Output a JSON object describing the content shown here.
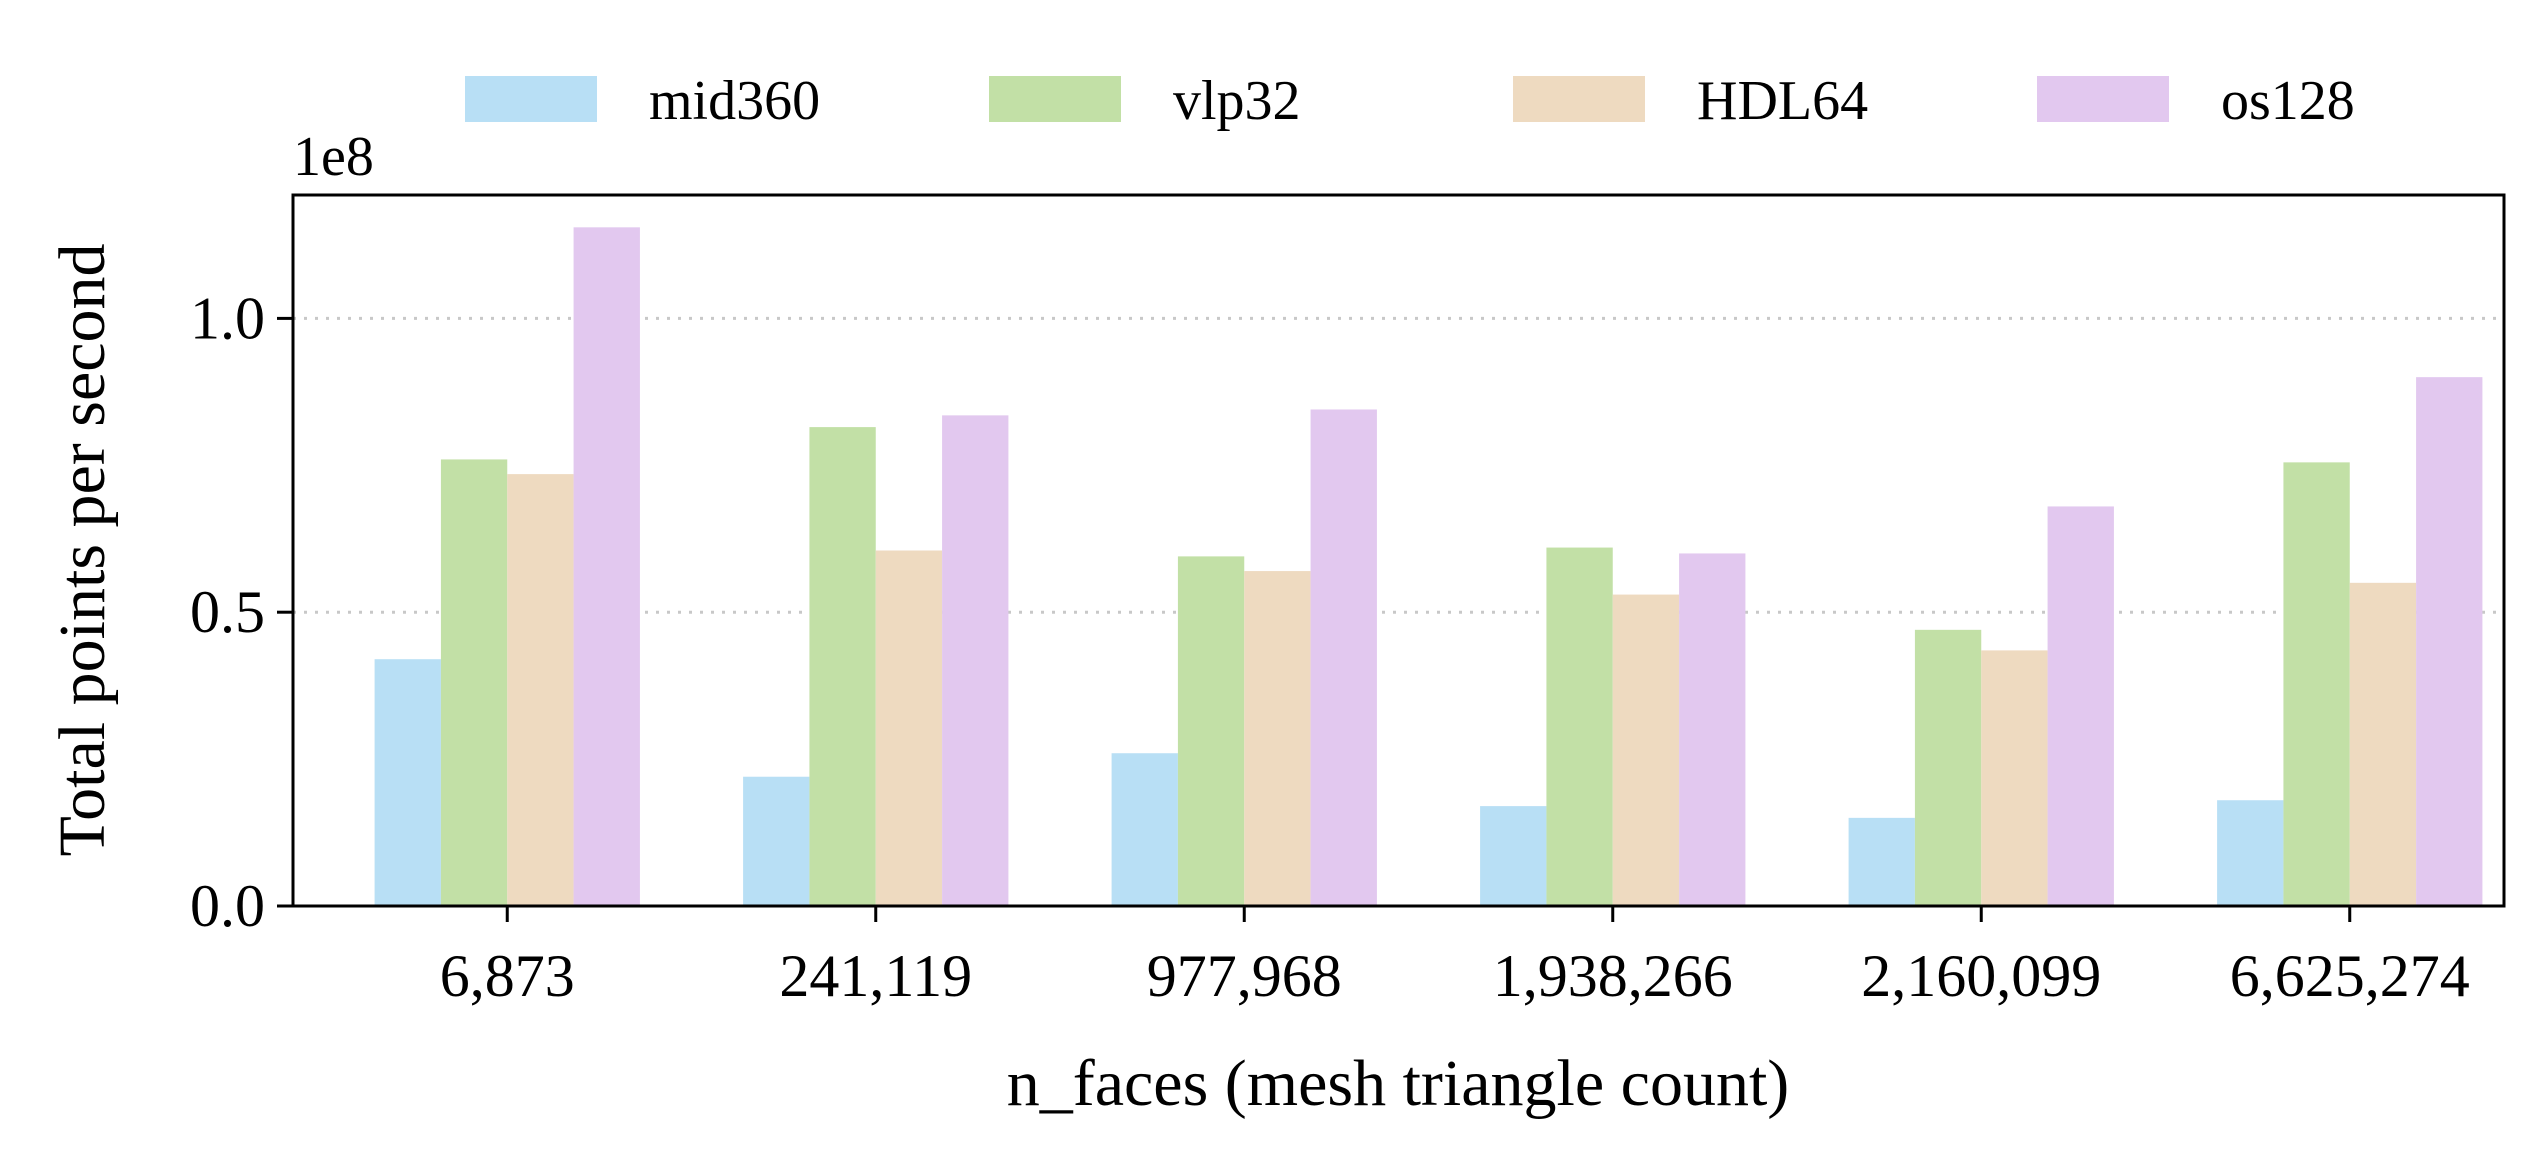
{
  "chart_data": {
    "type": "bar",
    "title": "",
    "xlabel": "n_faces (mesh triangle count)",
    "ylabel": "Total points per second",
    "y_offset_label": "1e8",
    "y_scale_factor": 100000000,
    "categories": [
      "6,873",
      "241,119",
      "977,968",
      "1,938,266",
      "2,160,099",
      "6,625,274"
    ],
    "series": [
      {
        "name": "mid360",
        "color": "#b8dff5",
        "values": [
          42000000,
          22000000,
          26000000,
          17000000,
          15000000,
          18000000
        ]
      },
      {
        "name": "vlp32",
        "color": "#c2e0a6",
        "values": [
          76000000,
          81500000,
          59500000,
          61000000,
          47000000,
          75500000
        ]
      },
      {
        "name": "HDL64",
        "color": "#eedac0",
        "values": [
          73500000,
          60500000,
          57000000,
          53000000,
          43500000,
          55000000
        ]
      },
      {
        "name": "os128",
        "color": "#e2c8ef",
        "values": [
          115500000,
          83500000,
          84500000,
          60000000,
          68000000,
          90000000
        ]
      }
    ],
    "ylim": [
      0,
      121000000
    ],
    "yticks": [
      0,
      50000000,
      100000000
    ],
    "ytick_labels": [
      "0.0",
      "0.5",
      "1.0"
    ],
    "grid": "horizontal dotted",
    "legend": "top-center, outside plot, 4 columns"
  }
}
